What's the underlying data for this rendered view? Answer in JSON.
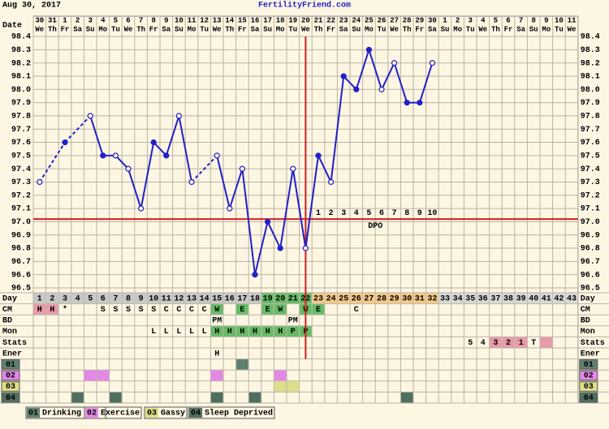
{
  "header": {
    "date": "Aug 30, 2017",
    "site": "FertilityFriend.com",
    "date_label": "Date"
  },
  "chart_data": {
    "type": "line",
    "dates": [
      30,
      31,
      1,
      2,
      3,
      4,
      5,
      6,
      7,
      8,
      9,
      10,
      11,
      12,
      13,
      14,
      15,
      16,
      17,
      18,
      19,
      20,
      21,
      22,
      23,
      24,
      25,
      26,
      27,
      28,
      29,
      30,
      1,
      2,
      3,
      4,
      5,
      6,
      7,
      8,
      9,
      10,
      11
    ],
    "weekdays": [
      "We",
      "Th",
      "Fr",
      "Sa",
      "Su",
      "Mo",
      "Tu",
      "We",
      "Th",
      "Fr",
      "Sa",
      "Su",
      "Mo",
      "Tu",
      "We",
      "Th",
      "Fr",
      "Sa",
      "Su",
      "Mo",
      "Tu",
      "We",
      "Th",
      "Fr",
      "Sa",
      "Su",
      "Mo",
      "Tu",
      "We",
      "Th",
      "Fr",
      "Sa",
      "Su",
      "Mo",
      "Tu",
      "We",
      "Th",
      "Fr",
      "Sa",
      "Su",
      "Mo",
      "Tu",
      "We"
    ],
    "series": [
      {
        "name": "Temperature",
        "color": "#2020c8",
        "values": [
          97.3,
          null,
          97.6,
          null,
          97.8,
          97.5,
          97.5,
          97.4,
          97.1,
          97.6,
          97.5,
          97.8,
          97.3,
          null,
          97.5,
          97.1,
          97.4,
          96.6,
          97.0,
          96.8,
          97.4,
          96.8,
          97.5,
          97.3,
          98.1,
          98.0,
          98.3,
          98.0,
          98.2,
          97.9,
          97.9,
          98.2,
          null,
          null,
          null,
          null,
          null,
          null,
          null,
          null,
          null,
          null,
          null
        ],
        "open_days": [
          1,
          5,
          7,
          8,
          9,
          12,
          13,
          15,
          16,
          17,
          21,
          22,
          24,
          28,
          29,
          32
        ]
      }
    ],
    "ylim": [
      96.5,
      98.4
    ],
    "yticks": [
      96.5,
      96.6,
      96.7,
      96.8,
      96.9,
      {
        "value": 97,
        "label": "97.0"
      },
      97.1,
      97.2,
      97.3,
      97.4,
      97.5,
      97.6,
      97.7,
      97.8,
      97.9,
      {
        "value": 98,
        "label": "98.0"
      },
      98.1,
      98.2,
      98.3,
      98.4
    ],
    "coverline": 97.02,
    "ovulation_day": 22,
    "line_color": "#d02020",
    "dpo_label": "DPO",
    "dpo": [
      null,
      null,
      null,
      null,
      null,
      null,
      null,
      null,
      null,
      null,
      null,
      null,
      null,
      null,
      null,
      null,
      null,
      null,
      null,
      null,
      null,
      null,
      1,
      2,
      3,
      4,
      5,
      6,
      7,
      8,
      9,
      10,
      null,
      null,
      null,
      null,
      null,
      null,
      null,
      null,
      null,
      null,
      null
    ],
    "days": [
      1,
      2,
      3,
      4,
      5,
      6,
      7,
      8,
      9,
      10,
      11,
      12,
      13,
      14,
      15,
      16,
      17,
      18,
      19,
      20,
      21,
      22,
      23,
      24,
      25,
      26,
      27,
      28,
      29,
      30,
      31,
      32,
      33,
      34,
      35,
      36,
      37,
      38,
      39,
      40,
      41,
      42,
      43
    ],
    "day_label": "Day",
    "day_colors": {
      "grey": [
        1,
        2,
        3,
        4,
        5,
        6,
        7,
        8,
        9,
        10,
        11,
        12,
        13,
        14,
        15,
        16,
        17,
        18
      ],
      "green": [
        19,
        20,
        21,
        22
      ],
      "orange": [
        23,
        24,
        25,
        26,
        27,
        28,
        29,
        30,
        31,
        32
      ]
    },
    "rows": [
      {
        "label": "CM",
        "cells": [
          "H",
          "H",
          "*",
          null,
          null,
          "S",
          "S",
          "S",
          "S",
          "S",
          "C",
          "C",
          "C",
          "C",
          "W",
          null,
          "E",
          null,
          "E",
          "W",
          null,
          "W",
          "E",
          null,
          null,
          "C",
          null,
          null,
          null,
          null,
          null,
          null,
          null,
          null,
          null,
          null,
          null,
          null,
          null,
          null,
          null,
          null,
          null
        ],
        "pink": [
          1,
          2
        ],
        "green": [
          15,
          17,
          19,
          20,
          22,
          23
        ]
      },
      {
        "label": "BD",
        "cells": [
          null,
          null,
          null,
          null,
          null,
          null,
          null,
          null,
          null,
          null,
          null,
          null,
          null,
          null,
          "PM",
          null,
          null,
          null,
          null,
          null,
          "PM",
          null,
          null,
          null,
          null,
          null,
          null,
          null,
          null,
          null,
          null,
          null,
          null,
          null,
          null,
          null,
          null,
          null,
          null,
          null,
          null,
          null,
          null
        ]
      },
      {
        "label": "Mon",
        "cells": [
          null,
          null,
          null,
          null,
          null,
          null,
          null,
          null,
          null,
          "L",
          "L",
          "L",
          "L",
          "L",
          "H",
          "H",
          "H",
          "H",
          "H",
          "H",
          "P",
          "P",
          null,
          null,
          null,
          null,
          null,
          null,
          null,
          null,
          null,
          null,
          null,
          null,
          null,
          null,
          null,
          null,
          null,
          null,
          null,
          null,
          null
        ],
        "green": [
          15,
          16,
          17,
          18,
          19,
          20,
          21,
          22
        ]
      },
      {
        "label": "Stats",
        "cells": [
          null,
          null,
          null,
          null,
          null,
          null,
          null,
          null,
          null,
          null,
          null,
          null,
          null,
          null,
          null,
          null,
          null,
          null,
          null,
          null,
          null,
          null,
          null,
          null,
          null,
          null,
          null,
          null,
          null,
          null,
          null,
          null,
          null,
          null,
          5,
          4,
          3,
          2,
          1,
          "T",
          null,
          null,
          null
        ],
        "pink": [
          37,
          38,
          39,
          41
        ]
      },
      {
        "label": "Ener",
        "cells": [
          null,
          null,
          null,
          null,
          null,
          null,
          null,
          null,
          null,
          null,
          null,
          null,
          null,
          null,
          "H",
          null,
          null,
          null,
          null,
          null,
          null,
          null,
          null,
          null,
          null,
          null,
          null,
          null,
          null,
          null,
          null,
          null,
          null,
          null,
          null,
          null,
          null,
          null,
          null,
          null,
          null,
          null,
          null
        ]
      }
    ],
    "symptoms": [
      {
        "code": "01",
        "name": "Drinking",
        "color": "#5f8070",
        "days": [
          17
        ]
      },
      {
        "code": "02",
        "name": "Exercise",
        "color": "#e488e8",
        "days": [
          5,
          6,
          15,
          20
        ]
      },
      {
        "code": "03",
        "name": "Gassy",
        "color": "#dede88",
        "days": [
          20,
          21
        ]
      },
      {
        "code": "04",
        "name": "Sleep Deprived",
        "color": "#4f7060",
        "days": [
          4,
          7,
          15,
          18,
          30
        ]
      }
    ]
  }
}
